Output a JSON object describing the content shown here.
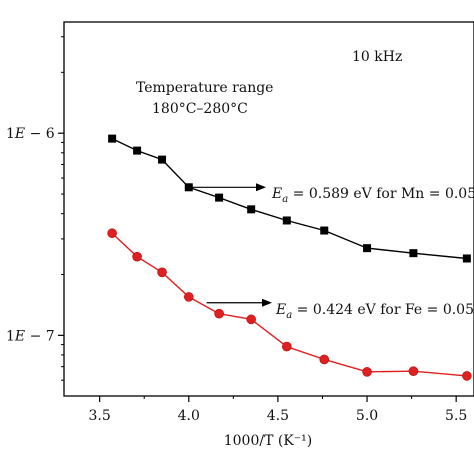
{
  "chart_data": {
    "type": "line",
    "xlabel": "1000/T (K⁻¹)",
    "ylabel": "",
    "xlim": [
      3.3,
      5.6
    ],
    "ylim_log10": [
      -7.3,
      -5.45
    ],
    "log_y": true,
    "grid": false,
    "xticks": [
      3.5,
      4.0,
      4.5,
      5.0,
      5.5
    ],
    "xtick_labels": [
      "3.5",
      "4.0",
      "4.5",
      "5.0",
      "5.5"
    ],
    "yticks": [
      1e-07,
      1e-06
    ],
    "ytick_labels": [
      "1E − 7",
      "1E − 6"
    ],
    "series": [
      {
        "color": "#000000",
        "marker": "square",
        "x": [
          3.57,
          3.71,
          3.85,
          4.0,
          4.17,
          4.35,
          4.55,
          4.76,
          5.0,
          5.26,
          5.56
        ],
        "y": [
          9.4e-07,
          8.2e-07,
          7.4e-07,
          5.4e-07,
          4.8e-07,
          4.2e-07,
          3.7e-07,
          3.3e-07,
          2.7e-07,
          2.55e-07,
          2.4e-07
        ]
      },
      {
        "color": "#e02020",
        "marker": "circle",
        "x": [
          3.57,
          3.71,
          3.85,
          4.0,
          4.17,
          4.35,
          4.55,
          4.76,
          5.0,
          5.26,
          5.56
        ],
        "y": [
          3.2e-07,
          2.45e-07,
          2.05e-07,
          1.55e-07,
          1.28e-07,
          1.2e-07,
          8.8e-08,
          7.6e-08,
          6.6e-08,
          6.65e-08,
          6.3e-08
        ]
      }
    ],
    "annotations": {
      "frequency": "10 kHz",
      "temp_range_line1": "Temperature range",
      "temp_range_line2": "180°C–280°C",
      "ea_mn": {
        "prefix": "E",
        "sub": "a",
        "text": " = 0.589 eV for Mn = 0.05",
        "arrow_from_x": 4.0,
        "arrow_y": 5.4e-07
      },
      "ea_fe": {
        "prefix": "E",
        "sub": "a",
        "text": " = 0.424 eV for Fe = 0.05",
        "arrow_from_x": 4.1,
        "arrow_y": 1.45e-07
      }
    }
  }
}
